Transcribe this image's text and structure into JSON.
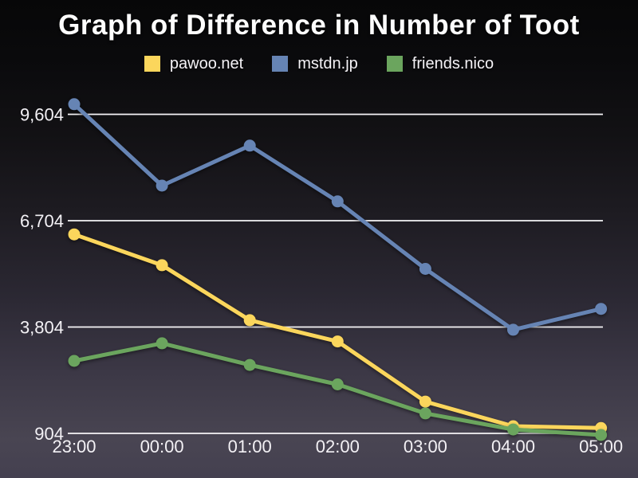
{
  "title": "Graph of Difference in Number of Toot",
  "legend": [
    {
      "label": "pawoo.net",
      "color": "#fbd65c"
    },
    {
      "label": "mstdn.jp",
      "color": "#6684b4"
    },
    {
      "label": "friends.nico",
      "color": "#6ba55e"
    }
  ],
  "chart_data": {
    "type": "line",
    "title": "Graph of Difference in Number of Toot",
    "x": [
      "23:00",
      "00:00",
      "01:00",
      "02:00",
      "03:00",
      "04:00",
      "05:00"
    ],
    "series": [
      {
        "name": "pawoo.net",
        "color": "#fbd65c",
        "values": [
          6330,
          5490,
          3990,
          3410,
          1770,
          1100,
          1050
        ]
      },
      {
        "name": "mstdn.jp",
        "color": "#6684b4",
        "values": [
          9880,
          7660,
          8750,
          7230,
          5390,
          3730,
          4300
        ]
      },
      {
        "name": "friends.nico",
        "color": "#6ba55e",
        "values": [
          2880,
          3360,
          2770,
          2240,
          1450,
          1010,
          860
        ]
      }
    ],
    "y_ticks": [
      904,
      3804,
      6704,
      9604
    ],
    "y_tick_labels": [
      "904",
      "3,804",
      "6,704",
      "9,604"
    ],
    "ylim": [
      904,
      9604
    ],
    "grid": true,
    "legend_position": "top",
    "background": "dark-gradient",
    "text_color": "#f3f1f5"
  }
}
